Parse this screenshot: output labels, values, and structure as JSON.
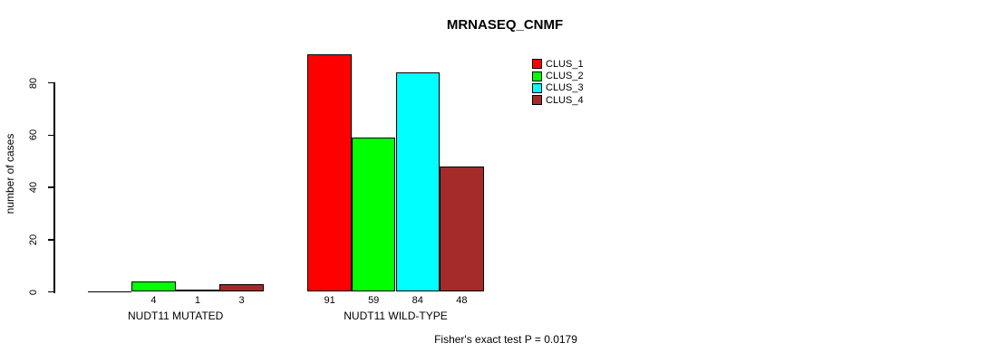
{
  "title": "MRNASEQ_CNMF",
  "y_axis": {
    "label": "number of cases"
  },
  "footer": "Fisher's exact test P = 0.0179",
  "chart_data": {
    "type": "bar",
    "title": "MRNASEQ_CNMF",
    "xlabel": "",
    "ylabel": "number of cases",
    "ylim": [
      0,
      80
    ],
    "yticks": [
      0,
      20,
      40,
      60,
      80
    ],
    "grid": false,
    "legend_position": "top-right",
    "categories": [
      "NUDT11 MUTATED",
      "NUDT11 WILD-TYPE"
    ],
    "series": [
      {
        "name": "CLUS_1",
        "color": "#FF0000",
        "values": [
          0,
          91
        ]
      },
      {
        "name": "CLUS_2",
        "color": "#00FF00",
        "values": [
          4,
          59
        ]
      },
      {
        "name": "CLUS_3",
        "color": "#00FFFF",
        "values": [
          1,
          84
        ]
      },
      {
        "name": "CLUS_4",
        "color": "#A52A2A",
        "values": [
          3,
          48
        ]
      }
    ],
    "bar_value_labels": {
      "NUDT11 MUTATED": [
        "",
        "4",
        "1",
        "3"
      ],
      "NUDT11 WILD-TYPE": [
        "91",
        "59",
        "84",
        "48"
      ]
    },
    "annotation": "Fisher's exact test P = 0.0179"
  }
}
